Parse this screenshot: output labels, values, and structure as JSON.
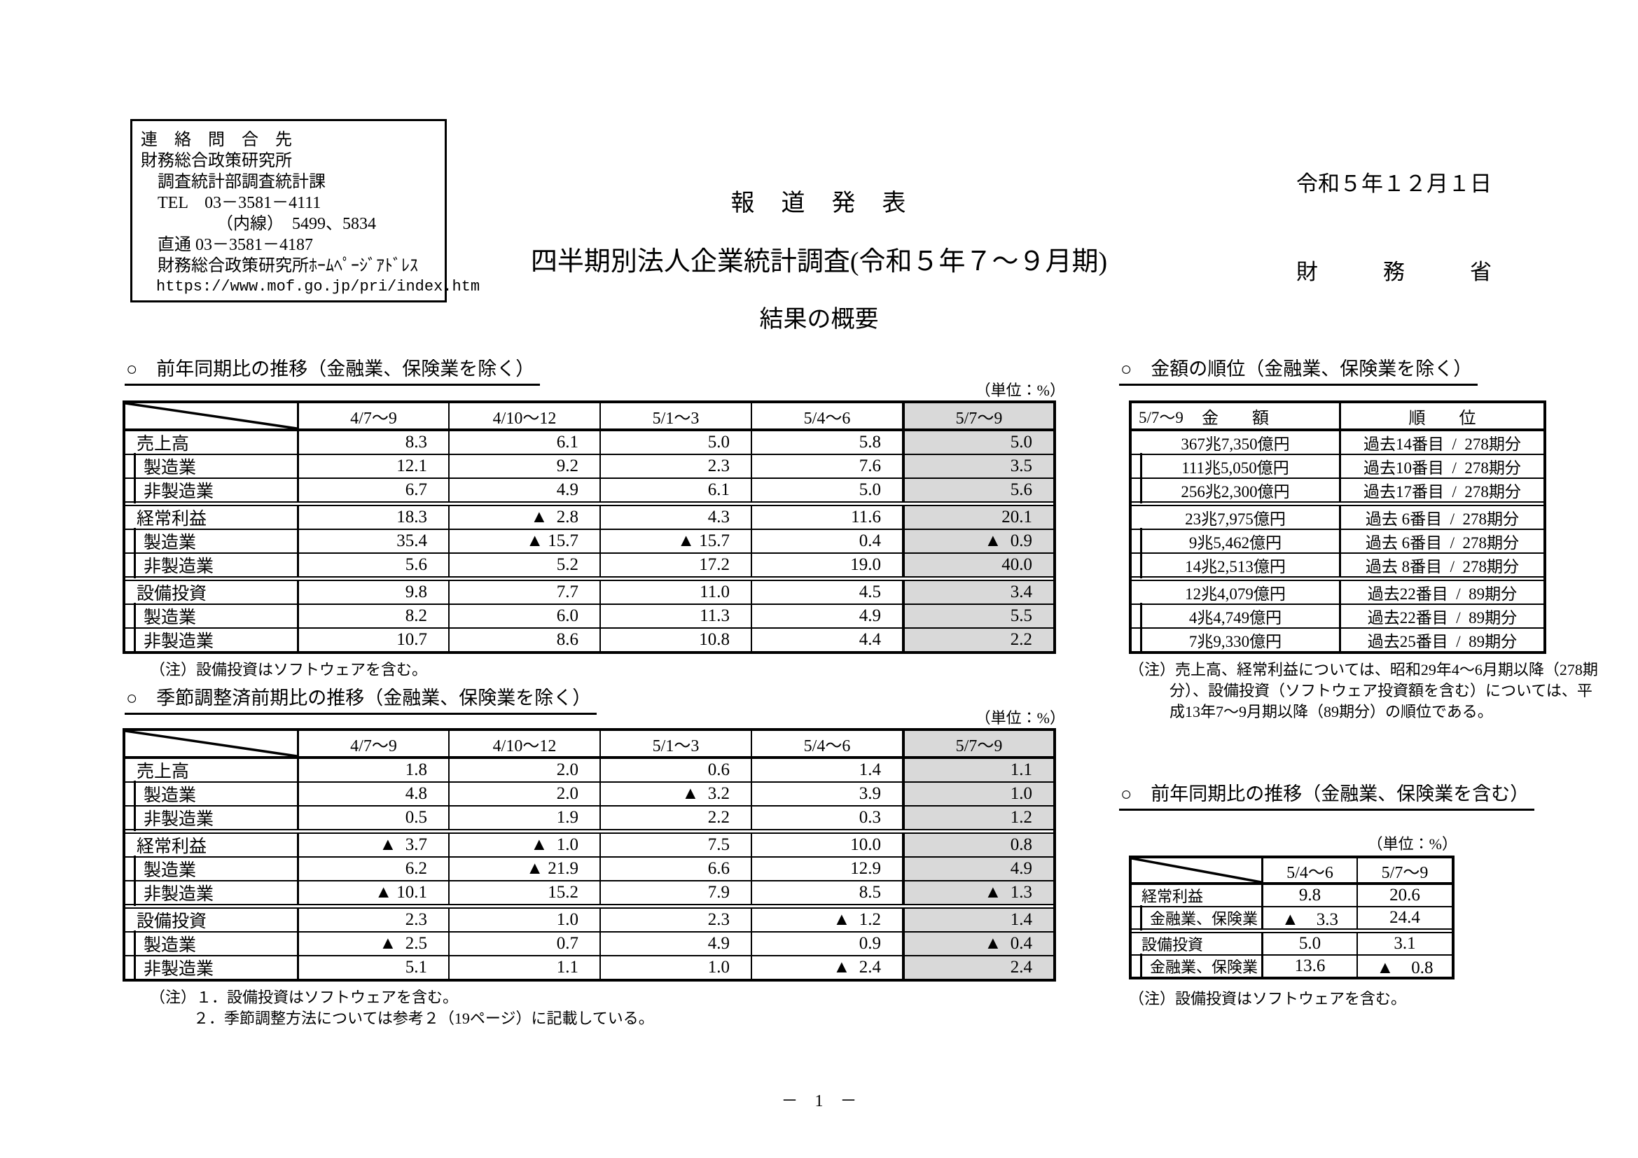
{
  "header": {
    "date": "令和５年１２月１日",
    "ministry": "財　　　務　　　省",
    "press_release": "報　道　発　表",
    "title": "四半期別法人企業統計調査(令和５年７～９月期)",
    "subtitle": "結果の概要"
  },
  "contact": {
    "lines": [
      "連　絡　問　合　先",
      "財務総合政策研究所",
      "　調査統計部調査統計課",
      "　TEL　03－3581－4111",
      "　　　　　（内線）　5499、5834",
      "　直通 03－3581－4187",
      "　財務総合政策研究所ﾎｰﾑﾍﾟｰｼﾞｱﾄﾞﾚｽ",
      "　https://www.mof.go.jp/pri/index.htm"
    ]
  },
  "colors": {
    "highlight_column": "#d9d9d9",
    "ink": "#000000"
  },
  "table1": {
    "title": "○　前年同期比の推移（金融業、保険業を除く）",
    "unit": "（単位：%）",
    "columns": [
      "4/7～9",
      "4/10～12",
      "5/1～3",
      "5/4～6",
      "5/7～9"
    ],
    "rows": [
      {
        "label": "売上高",
        "sub": false,
        "values": [
          "8.3",
          "6.1",
          "5.0",
          "5.8",
          "5.0"
        ]
      },
      {
        "label": "製造業",
        "sub": true,
        "values": [
          "12.1",
          "9.2",
          "2.3",
          "7.6",
          "3.5"
        ]
      },
      {
        "label": "非製造業",
        "sub": true,
        "values": [
          "6.7",
          "4.9",
          "6.1",
          "5.0",
          "5.6"
        ]
      },
      {
        "label": "経常利益",
        "sub": false,
        "values": [
          "18.3",
          "▲  2.8",
          "4.3",
          "11.6",
          "20.1"
        ]
      },
      {
        "label": "製造業",
        "sub": true,
        "values": [
          "35.4",
          "▲ 15.7",
          "▲ 15.7",
          "0.4",
          "▲  0.9"
        ]
      },
      {
        "label": "非製造業",
        "sub": true,
        "values": [
          "5.6",
          "5.2",
          "17.2",
          "19.0",
          "40.0"
        ]
      },
      {
        "label": "設備投資",
        "sub": false,
        "values": [
          "9.8",
          "7.7",
          "11.0",
          "4.5",
          "3.4"
        ]
      },
      {
        "label": "製造業",
        "sub": true,
        "values": [
          "8.2",
          "6.0",
          "11.3",
          "4.9",
          "5.5"
        ]
      },
      {
        "label": "非製造業",
        "sub": true,
        "values": [
          "10.7",
          "8.6",
          "10.8",
          "4.4",
          "2.2"
        ]
      }
    ],
    "note": "（注）設備投資はソフトウェアを含む。"
  },
  "table2": {
    "title": "○　季節調整済前期比の推移（金融業、保険業を除く）",
    "unit": "（単位：%）",
    "columns": [
      "4/7～9",
      "4/10～12",
      "5/1～3",
      "5/4～6",
      "5/7～9"
    ],
    "rows": [
      {
        "label": "売上高",
        "sub": false,
        "values": [
          "1.8",
          "2.0",
          "0.6",
          "1.4",
          "1.1"
        ]
      },
      {
        "label": "製造業",
        "sub": true,
        "values": [
          "4.8",
          "2.0",
          "▲  3.2",
          "3.9",
          "1.0"
        ]
      },
      {
        "label": "非製造業",
        "sub": true,
        "values": [
          "0.5",
          "1.9",
          "2.2",
          "0.3",
          "1.2"
        ]
      },
      {
        "label": "経常利益",
        "sub": false,
        "values": [
          "▲  3.7",
          "▲  1.0",
          "7.5",
          "10.0",
          "0.8"
        ]
      },
      {
        "label": "製造業",
        "sub": true,
        "values": [
          "6.2",
          "▲ 21.9",
          "6.6",
          "12.9",
          "4.9"
        ]
      },
      {
        "label": "非製造業",
        "sub": true,
        "values": [
          "▲ 10.1",
          "15.2",
          "7.9",
          "8.5",
          "▲  1.3"
        ]
      },
      {
        "label": "設備投資",
        "sub": false,
        "values": [
          "2.3",
          "1.0",
          "2.3",
          "▲  1.2",
          "1.4"
        ]
      },
      {
        "label": "製造業",
        "sub": true,
        "values": [
          "▲  2.5",
          "0.7",
          "4.9",
          "0.9",
          "▲  0.4"
        ]
      },
      {
        "label": "非製造業",
        "sub": true,
        "values": [
          "5.1",
          "1.1",
          "1.0",
          "▲  2.4",
          "2.4"
        ]
      }
    ],
    "notes": {
      "n1": "（注）１．設備投資はソフトウェアを含む。",
      "n2": "２．季節調整方法については参考２（19ページ）に記載している。"
    }
  },
  "rank_table": {
    "title": "○　金額の順位（金融業、保険業を除く）",
    "header": {
      "period": "5/7～9",
      "amount": "金　　額",
      "rank": "順　　位"
    },
    "rows": [
      {
        "amount": "367兆7,350億円",
        "rank": "過去14番目  /  278期分",
        "sub": false
      },
      {
        "amount": "111兆5,050億円",
        "rank": "過去10番目  /  278期分",
        "sub": true
      },
      {
        "amount": "256兆2,300億円",
        "rank": "過去17番目  /  278期分",
        "sub": true
      },
      {
        "amount": "23兆7,975億円",
        "rank": "過去 6番目  /  278期分",
        "sub": false
      },
      {
        "amount": "9兆5,462億円",
        "rank": "過去 6番目  /  278期分",
        "sub": true
      },
      {
        "amount": "14兆2,513億円",
        "rank": "過去 8番目  /  278期分",
        "sub": true
      },
      {
        "amount": "12兆4,079億円",
        "rank": "過去22番目  /  89期分",
        "sub": false
      },
      {
        "amount": "4兆4,749億円",
        "rank": "過去22番目  /  89期分",
        "sub": true
      },
      {
        "amount": "7兆9,330億円",
        "rank": "過去25番目  /  89期分",
        "sub": true
      }
    ],
    "note": "（注）売上高、経常利益については、昭和29年4～6月期以降（278期分）、設備投資（ソフトウェア投資額を含む）については、平成13年7～9月期以降（89期分）の順位である。"
  },
  "small_table": {
    "title": "○　前年同期比の推移（金融業、保険業を含む）",
    "unit": "（単位：%）",
    "columns": [
      "5/4～6",
      "5/7～9"
    ],
    "rows": [
      {
        "label": "経常利益",
        "sub": false,
        "values": [
          "9.8",
          "20.6"
        ]
      },
      {
        "label": "金融業、保険業",
        "sub": true,
        "values": [
          "▲　3.3",
          "24.4"
        ]
      },
      {
        "label": "設備投資",
        "sub": false,
        "values": [
          "5.0",
          "3.1"
        ]
      },
      {
        "label": "金融業、保険業",
        "sub": true,
        "values": [
          "13.6",
          "▲　0.8"
        ]
      }
    ],
    "note": "（注）設備投資はソフトウェアを含む。"
  },
  "footer": {
    "page_number": "－　1　－"
  }
}
